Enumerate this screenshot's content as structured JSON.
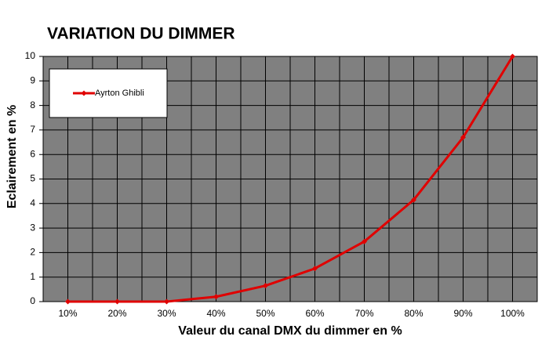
{
  "chart_data": {
    "type": "line",
    "title": "VARIATION DU DIMMER",
    "x_label": "Valeur du canal DMX du dimmer en %",
    "y_label": "Eclairement en %",
    "categories": [
      "10%",
      "20%",
      "30%",
      "40%",
      "50%",
      "60%",
      "70%",
      "80%",
      "90%",
      "100%"
    ],
    "series": [
      {
        "name": "Ayrton Ghibli",
        "color": "#e00000",
        "values": [
          0,
          0,
          0,
          0.2,
          0.65,
          1.35,
          2.45,
          4.15,
          6.7,
          10
        ]
      }
    ],
    "ylim": [
      0,
      10
    ],
    "yticks": [
      0,
      1,
      2,
      3,
      4,
      5,
      6,
      7,
      8,
      9,
      10
    ],
    "grid": true,
    "legend": "top-left",
    "plot_background": "#808080"
  }
}
